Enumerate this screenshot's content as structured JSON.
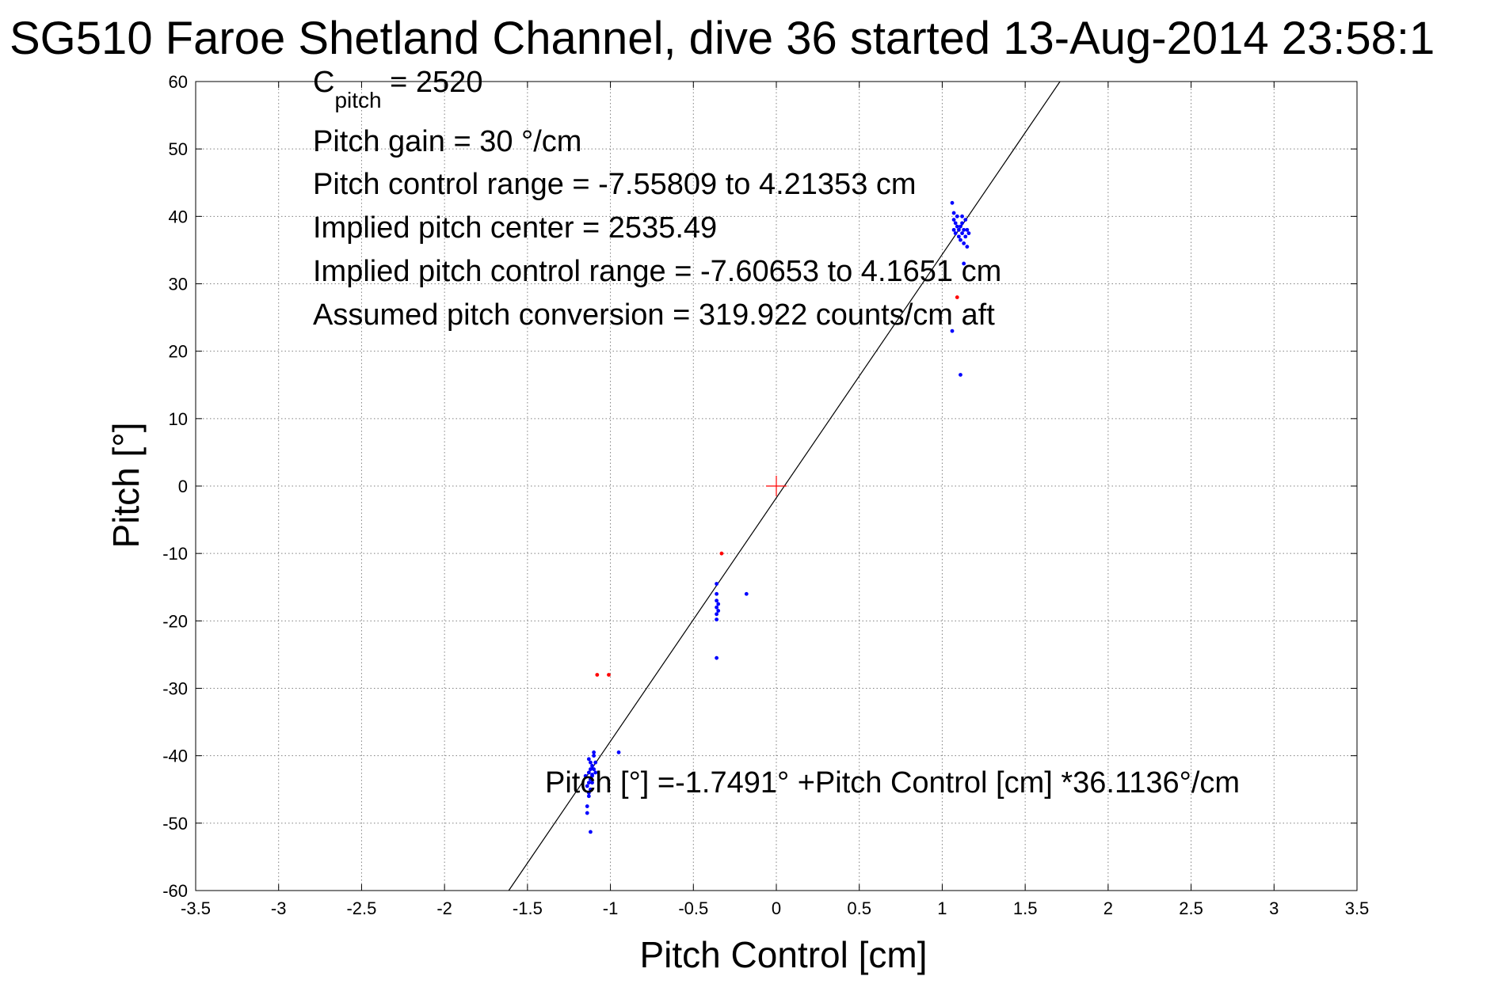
{
  "figure": {
    "title": "SG510 Faroe Shetland Channel, dive 36 started 13-Aug-2014 23:58:1"
  },
  "chart_data": {
    "type": "scatter",
    "title": "SG510 Faroe Shetland Channel, dive 36 started 13-Aug-2014 23:58:1",
    "xlabel": "Pitch Control [cm]",
    "ylabel": "Pitch [°]",
    "xlim": [
      -3.5,
      3.5
    ],
    "ylim": [
      -60,
      60
    ],
    "xticks": [
      -3.5,
      -3,
      -2.5,
      -2,
      -1.5,
      -1,
      -0.5,
      0,
      0.5,
      1,
      1.5,
      2,
      2.5,
      3,
      3.5
    ],
    "yticks": [
      -60,
      -50,
      -40,
      -30,
      -20,
      -10,
      0,
      10,
      20,
      30,
      40,
      50,
      60
    ],
    "xtick_labels": [
      "-3.5",
      "-3",
      "-2.5",
      "-2",
      "-1.5",
      "-1",
      "-0.5",
      "0",
      "0.5",
      "1",
      "1.5",
      "2",
      "2.5",
      "3",
      "3.5"
    ],
    "ytick_labels": [
      "-60",
      "-50",
      "-40",
      "-30",
      "-20",
      "-10",
      "0",
      "10",
      "20",
      "30",
      "40",
      "50",
      "60"
    ],
    "grid": true,
    "fit_line": {
      "intercept": -1.7491,
      "slope": 36.1136
    },
    "center_marker": {
      "x": 0,
      "y": 0,
      "color": "#ff0000"
    },
    "series": [
      {
        "color": "#0000ff",
        "points": [
          [
            1.06,
            42.0
          ],
          [
            1.07,
            40.5
          ],
          [
            1.07,
            39.5
          ],
          [
            1.08,
            39.0
          ],
          [
            1.09,
            38.5
          ],
          [
            1.1,
            38.0
          ],
          [
            1.11,
            38.5
          ],
          [
            1.12,
            39.0
          ],
          [
            1.13,
            38.0
          ],
          [
            1.12,
            37.5
          ],
          [
            1.14,
            37.0
          ],
          [
            1.15,
            38.0
          ],
          [
            1.1,
            37.0
          ],
          [
            1.08,
            37.5
          ],
          [
            1.07,
            38.0
          ],
          [
            1.11,
            36.5
          ],
          [
            1.13,
            36.0
          ],
          [
            1.15,
            35.5
          ],
          [
            1.16,
            37.5
          ],
          [
            1.12,
            40.0
          ],
          [
            1.09,
            40.0
          ],
          [
            1.14,
            39.5
          ],
          [
            1.13,
            33.0
          ],
          [
            1.06,
            23.0
          ],
          [
            1.11,
            16.5
          ],
          [
            -0.36,
            -14.5
          ],
          [
            -0.36,
            -16.0
          ],
          [
            -0.36,
            -17.0
          ],
          [
            -0.36,
            -18.0
          ],
          [
            -0.36,
            -19.0
          ],
          [
            -0.36,
            -19.8
          ],
          [
            -0.35,
            -17.5
          ],
          [
            -0.35,
            -18.5
          ],
          [
            -0.18,
            -16.0
          ],
          [
            -0.36,
            -25.5
          ],
          [
            -1.13,
            -40.5
          ],
          [
            -1.12,
            -41.0
          ],
          [
            -1.11,
            -41.5
          ],
          [
            -1.1,
            -40.0
          ],
          [
            -1.12,
            -42.0
          ],
          [
            -1.13,
            -42.5
          ],
          [
            -1.11,
            -43.0
          ],
          [
            -1.1,
            -42.0
          ],
          [
            -1.12,
            -43.5
          ],
          [
            -1.13,
            -44.0
          ],
          [
            -1.14,
            -44.5
          ],
          [
            -1.12,
            -45.0
          ],
          [
            -1.11,
            -44.0
          ],
          [
            -1.13,
            -46.0
          ],
          [
            -1.14,
            -47.5
          ],
          [
            -1.14,
            -48.5
          ],
          [
            -1.13,
            -45.5
          ],
          [
            -1.1,
            -39.5
          ],
          [
            -1.09,
            -41.0
          ],
          [
            -1.09,
            -42.5
          ],
          [
            -0.95,
            -39.5
          ],
          [
            -1.12,
            -51.3
          ],
          [
            -1.15,
            -43.0
          ],
          [
            -1.11,
            -42.8
          ]
        ]
      },
      {
        "color": "#ff0000",
        "points": [
          [
            1.09,
            28.0
          ],
          [
            -0.33,
            -10.0
          ],
          [
            -1.08,
            -28.0
          ],
          [
            -1.01,
            -28.0
          ]
        ]
      }
    ],
    "annotations": {
      "cpitch_main": "C",
      "cpitch_sub": "pitch",
      "cpitch_rest": " = 2520",
      "gain": "Pitch gain = 30 °/cm",
      "range": "Pitch control range = -7.55809 to 4.21353 cm",
      "center": "Implied pitch center = 2535.49",
      "implied_range": "Implied pitch control range = -7.60653 to 4.1651 cm",
      "conversion": "Assumed pitch conversion = 319.922 counts/cm aft",
      "fit_equation": "Pitch [°] =-1.7491° +Pitch Control [cm] *36.1136°/cm"
    }
  }
}
